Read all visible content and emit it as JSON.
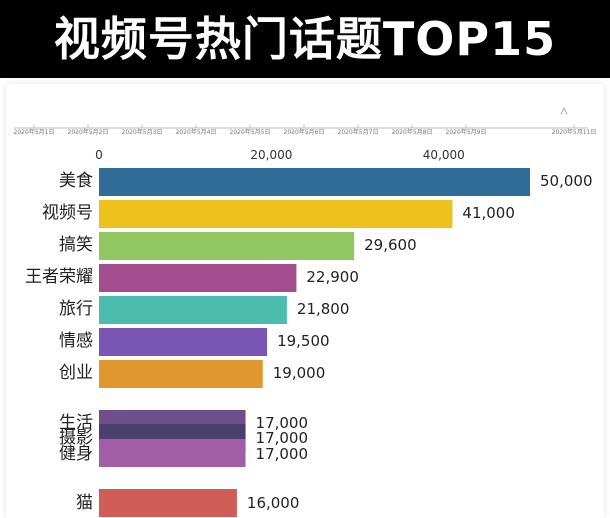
{
  "title": "视频号热门话题TOP15",
  "chart_data": {
    "type": "bar",
    "orientation": "horizontal",
    "title": "视频号热门话题TOP15",
    "timeline_dates": [
      "2020年5月1日",
      "2020年5月2日",
      "2020年5月3日",
      "2020年5月4日",
      "2020年5月5日",
      "2020年5月6日",
      "2020年5月7日",
      "2020年5月8日",
      "2020年5月9日",
      "2020年5月11日"
    ],
    "x_ticks": [
      0,
      20000,
      40000
    ],
    "x_tick_labels": [
      "0",
      "20,000",
      "40,000"
    ],
    "xlim": [
      0,
      50000
    ],
    "categories": [
      "美食",
      "视频号",
      "搞笑",
      "王者荣耀",
      "旅行",
      "情感",
      "创业",
      "生活",
      "摄影",
      "健身",
      "猫"
    ],
    "values": [
      50000,
      41000,
      29600,
      22900,
      21800,
      19500,
      19000,
      17000,
      17000,
      17000,
      16000
    ],
    "value_labels": [
      "50,000",
      "41,000",
      "29,600",
      "22,900",
      "21,800",
      "19,500",
      "19,000",
      "17,000",
      "17,000",
      "17,000",
      "16,000"
    ],
    "colors": [
      "#2f6d98",
      "#eec21d",
      "#92c661",
      "#a24d8e",
      "#4bbcae",
      "#7956b3",
      "#e0972f",
      "#6d4f8c",
      "#4b3f6e",
      "#a25da7",
      "#d05d57"
    ],
    "grid": false,
    "legend": "none"
  }
}
